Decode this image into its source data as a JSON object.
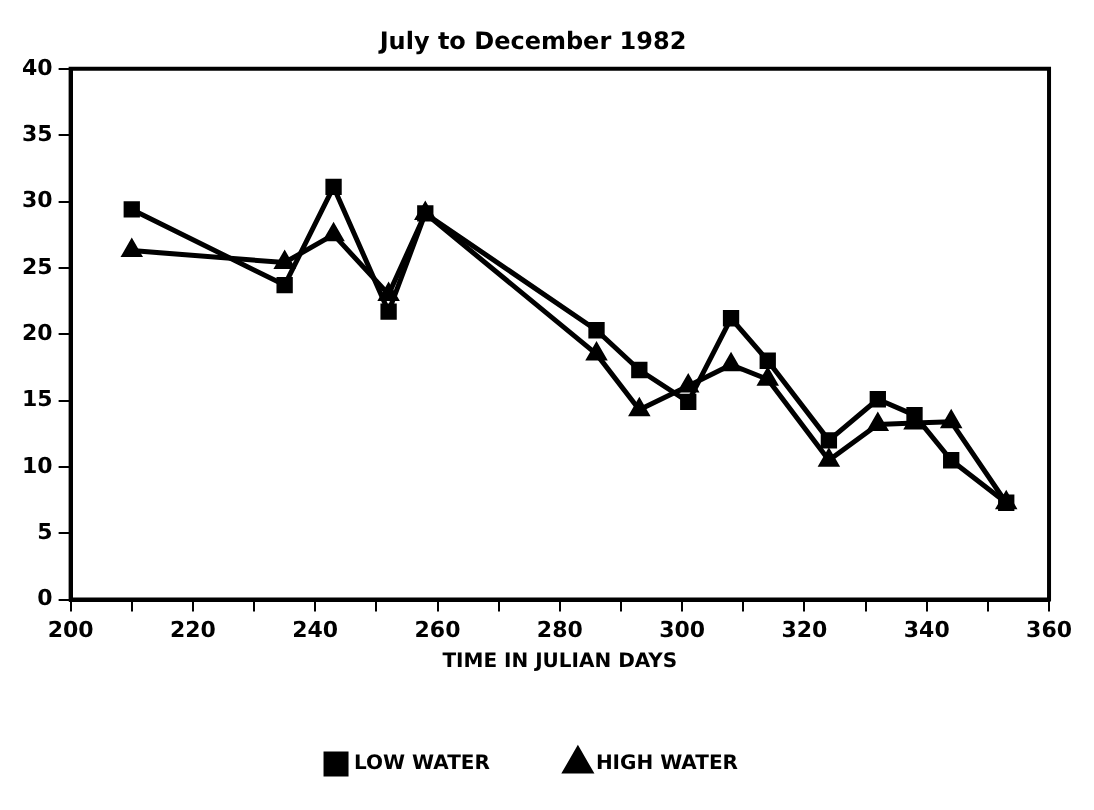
{
  "chart_data": {
    "type": "line",
    "title": "July to December 1982",
    "xlabel": "TIME IN JULIAN DAYS",
    "xlim": [
      200,
      360
    ],
    "xticks": [
      200,
      {
        "value": 210,
        "label": null
      },
      220,
      {
        "value": 230,
        "label": null
      },
      240,
      {
        "value": 250,
        "label": null
      },
      260,
      {
        "value": 270,
        "label": null
      },
      280,
      {
        "value": 290,
        "label": null
      },
      300,
      {
        "value": 310,
        "label": null
      },
      320,
      {
        "value": 330,
        "label": null
      },
      340,
      {
        "value": 350,
        "label": null
      },
      360
    ],
    "ylim": [
      0,
      40
    ],
    "yticks": [
      0,
      5,
      10,
      15,
      20,
      25,
      30,
      35,
      40
    ],
    "grid": false,
    "legend": "bottom",
    "line_style": "solid",
    "x": [
      210,
      235,
      243,
      252,
      258,
      286,
      293,
      301,
      308,
      314,
      324,
      332,
      338,
      344,
      353
    ],
    "series": [
      {
        "name": "LOW WATER",
        "color": "#000000",
        "marker": "square",
        "values": [
          29.4,
          23.7,
          31.1,
          21.7,
          29.1,
          20.3,
          17.3,
          14.9,
          21.2,
          18.0,
          12.0,
          15.1,
          13.9,
          10.5,
          7.3
        ]
      },
      {
        "name": "HIGH WATER",
        "color": "#000000",
        "marker": "triangle",
        "values": [
          26.3,
          25.4,
          27.5,
          23.0,
          29.1,
          18.5,
          14.3,
          16.1,
          17.7,
          16.6,
          10.5,
          13.2,
          13.3,
          13.4,
          7.3
        ]
      }
    ]
  }
}
